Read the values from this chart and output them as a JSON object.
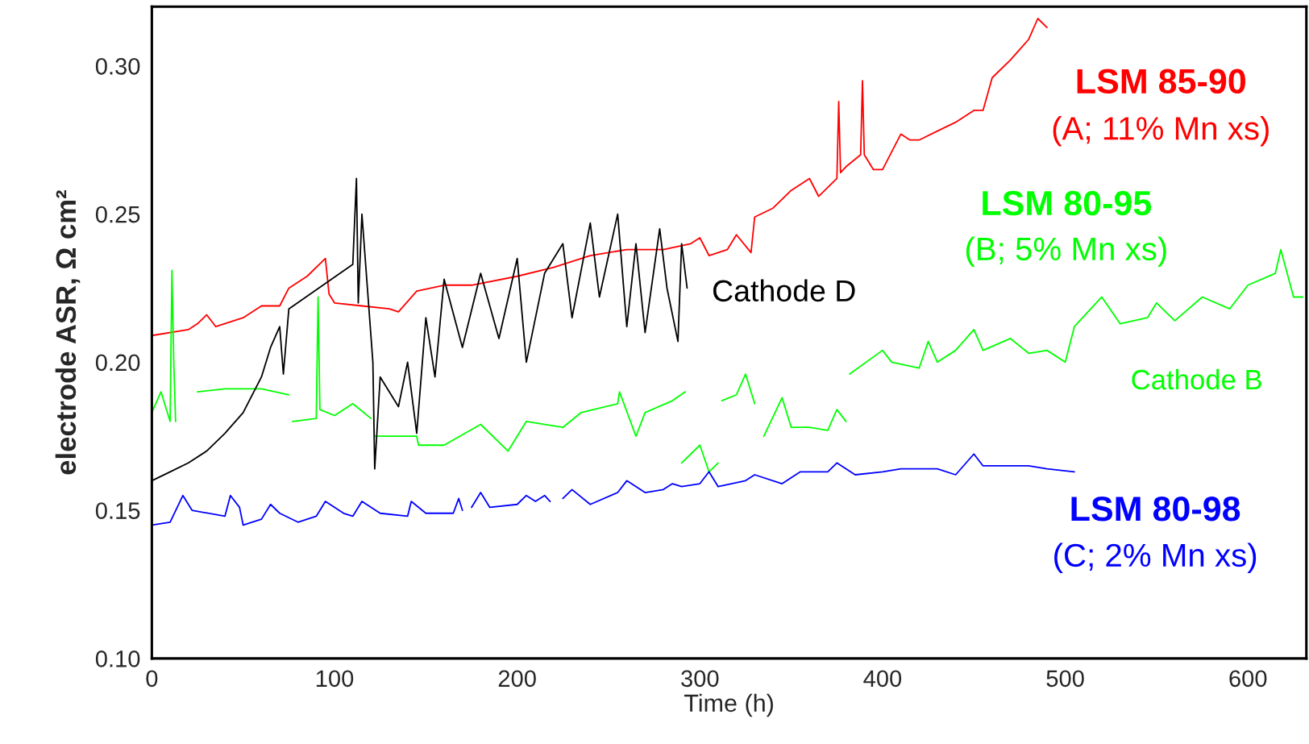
{
  "chart_data": {
    "type": "line",
    "xlabel": "Time (h)",
    "ylabel": "electrode ASR, Ω cm²",
    "xlim": [
      0,
      632
    ],
    "ylim": [
      0.1,
      0.32
    ],
    "xticks": [
      0,
      100,
      200,
      300,
      400,
      500,
      600
    ],
    "yticks": [
      {
        "value": 0.1,
        "label": "0.10"
      },
      {
        "value": 0.15,
        "label": "0.15"
      },
      {
        "value": 0.2,
        "label": "0.20"
      },
      {
        "value": 0.25,
        "label": "0.25"
      },
      {
        "value": 0.3,
        "label": "0.30"
      }
    ],
    "grid": false,
    "legend": false,
    "marker": "none",
    "line_style": "solid",
    "annotations": [
      "(A; 11% Mn xs)",
      "(B; 5% Mn xs)",
      "Cathode B",
      "(C; 2% Mn xs)"
    ],
    "series": [
      {
        "name": "LSM 85-90",
        "color": "#ff0000",
        "x": [
          0,
          20,
          25,
          30,
          35,
          50,
          60,
          70,
          75,
          85,
          95,
          97,
          100,
          115,
          130,
          135,
          145,
          160,
          175,
          200,
          220,
          240,
          260,
          280,
          295,
          300,
          305,
          315,
          320,
          328,
          330,
          340,
          350,
          360,
          365,
          375,
          376,
          377,
          380,
          388,
          389,
          390,
          395,
          400,
          410,
          415,
          420,
          430,
          440,
          450,
          455,
          460,
          470,
          480,
          485,
          490
        ],
        "values": [
          0.209,
          0.211,
          0.213,
          0.216,
          0.212,
          0.215,
          0.219,
          0.219,
          0.225,
          0.229,
          0.235,
          0.223,
          0.22,
          0.219,
          0.218,
          0.217,
          0.224,
          0.226,
          0.226,
          0.229,
          0.232,
          0.236,
          0.238,
          0.238,
          0.24,
          0.242,
          0.236,
          0.238,
          0.243,
          0.237,
          0.249,
          0.252,
          0.258,
          0.262,
          0.256,
          0.262,
          0.288,
          0.264,
          0.266,
          0.27,
          0.295,
          0.27,
          0.265,
          0.265,
          0.277,
          0.275,
          0.275,
          0.278,
          0.281,
          0.285,
          0.285,
          0.296,
          0.302,
          0.309,
          0.316,
          0.313
        ]
      },
      {
        "name": "LSM 80-95",
        "color": "#00ff00",
        "x": [
          0,
          5,
          10,
          11,
          12,
          13,
          19,
          25,
          40,
          60,
          75,
          76,
          77,
          90,
          91,
          92,
          100,
          110,
          120,
          121,
          122,
          145,
          146,
          160,
          180,
          195,
          205,
          225,
          235,
          255,
          256,
          265,
          270,
          285,
          292,
          293,
          312,
          320,
          325,
          330,
          334,
          335,
          345,
          350,
          360,
          370,
          375,
          380,
          381,
          382,
          400,
          405,
          420,
          425,
          430,
          440,
          450,
          455,
          470,
          480,
          490,
          500,
          505,
          520,
          530,
          545,
          550,
          560,
          575,
          590,
          600,
          615,
          618,
          625,
          630
        ],
        "values": [
          0.183,
          0.19,
          0.18,
          0.231,
          0.2,
          0.18,
          null,
          0.19,
          0.191,
          0.191,
          0.189,
          null,
          0.18,
          0.181,
          0.222,
          0.184,
          0.182,
          0.186,
          0.181,
          null,
          0.175,
          0.175,
          0.172,
          0.172,
          0.179,
          0.17,
          0.18,
          0.178,
          0.183,
          0.186,
          0.19,
          0.175,
          0.183,
          0.187,
          0.19,
          null,
          0.187,
          0.189,
          0.196,
          0.186,
          null,
          0.175,
          0.188,
          0.178,
          0.178,
          0.177,
          0.184,
          0.18,
          null,
          0.196,
          0.204,
          0.2,
          0.198,
          0.207,
          0.2,
          0.204,
          0.211,
          0.204,
          0.208,
          0.203,
          0.204,
          0.2,
          0.212,
          0.222,
          0.213,
          0.215,
          0.22,
          0.214,
          0.222,
          0.218,
          0.226,
          0.23,
          0.238,
          0.222,
          0.222
        ]
      },
      {
        "color": "#00ff00",
        "x": [
          290,
          300,
          305,
          310
        ],
        "values": [
          0.166,
          0.172,
          0.163,
          0.166
        ]
      },
      {
        "name": "LSM 80-98",
        "color": "#0000ff",
        "x": [
          0,
          10,
          17,
          22,
          40,
          43,
          48,
          50,
          60,
          65,
          70,
          80,
          90,
          95,
          105,
          110,
          115,
          125,
          140,
          142,
          150,
          165,
          168,
          170,
          171,
          175,
          180,
          185,
          200,
          205,
          210,
          215,
          218,
          220,
          225,
          230,
          240,
          255,
          260,
          270,
          280,
          285,
          290,
          300,
          305,
          310,
          325,
          330,
          345,
          355,
          370,
          375,
          385,
          400,
          410,
          430,
          440,
          450,
          455,
          470,
          480,
          490,
          505
        ],
        "values": [
          0.145,
          0.146,
          0.155,
          0.15,
          0.148,
          0.155,
          0.151,
          0.145,
          0.147,
          0.152,
          0.149,
          0.146,
          0.148,
          0.153,
          0.149,
          0.148,
          0.153,
          0.149,
          0.148,
          0.153,
          0.149,
          0.149,
          0.154,
          0.15,
          null,
          0.151,
          0.156,
          0.151,
          0.152,
          0.155,
          0.153,
          0.155,
          0.153,
          null,
          0.154,
          0.157,
          0.152,
          0.156,
          0.16,
          0.156,
          0.157,
          0.159,
          0.158,
          0.159,
          0.163,
          0.158,
          0.16,
          0.162,
          0.159,
          0.163,
          0.163,
          0.166,
          0.162,
          0.163,
          0.164,
          0.164,
          0.162,
          0.169,
          0.165,
          0.165,
          0.165,
          0.164,
          0.163
        ]
      },
      {
        "name": "Cathode D",
        "color": "#000000",
        "x": [
          0,
          10,
          20,
          30,
          40,
          50,
          60,
          65,
          70,
          72,
          75,
          110,
          112,
          113,
          115,
          118,
          121,
          122,
          125,
          135,
          140,
          145,
          150,
          155,
          160,
          170,
          180,
          190,
          200,
          205,
          215,
          225,
          230,
          240,
          245,
          255,
          260,
          265,
          270,
          278,
          282,
          288,
          290,
          293
        ],
        "values": [
          0.16,
          0.163,
          0.166,
          0.17,
          0.176,
          0.183,
          0.195,
          0.205,
          0.212,
          0.196,
          0.218,
          0.233,
          0.262,
          0.22,
          0.25,
          0.225,
          0.2,
          0.164,
          0.195,
          0.185,
          0.2,
          0.176,
          0.215,
          0.195,
          0.228,
          0.205,
          0.23,
          0.208,
          0.235,
          0.2,
          0.23,
          0.24,
          0.215,
          0.247,
          0.222,
          0.25,
          0.212,
          0.24,
          0.21,
          0.245,
          0.225,
          0.207,
          0.24,
          0.225
        ]
      }
    ]
  }
}
